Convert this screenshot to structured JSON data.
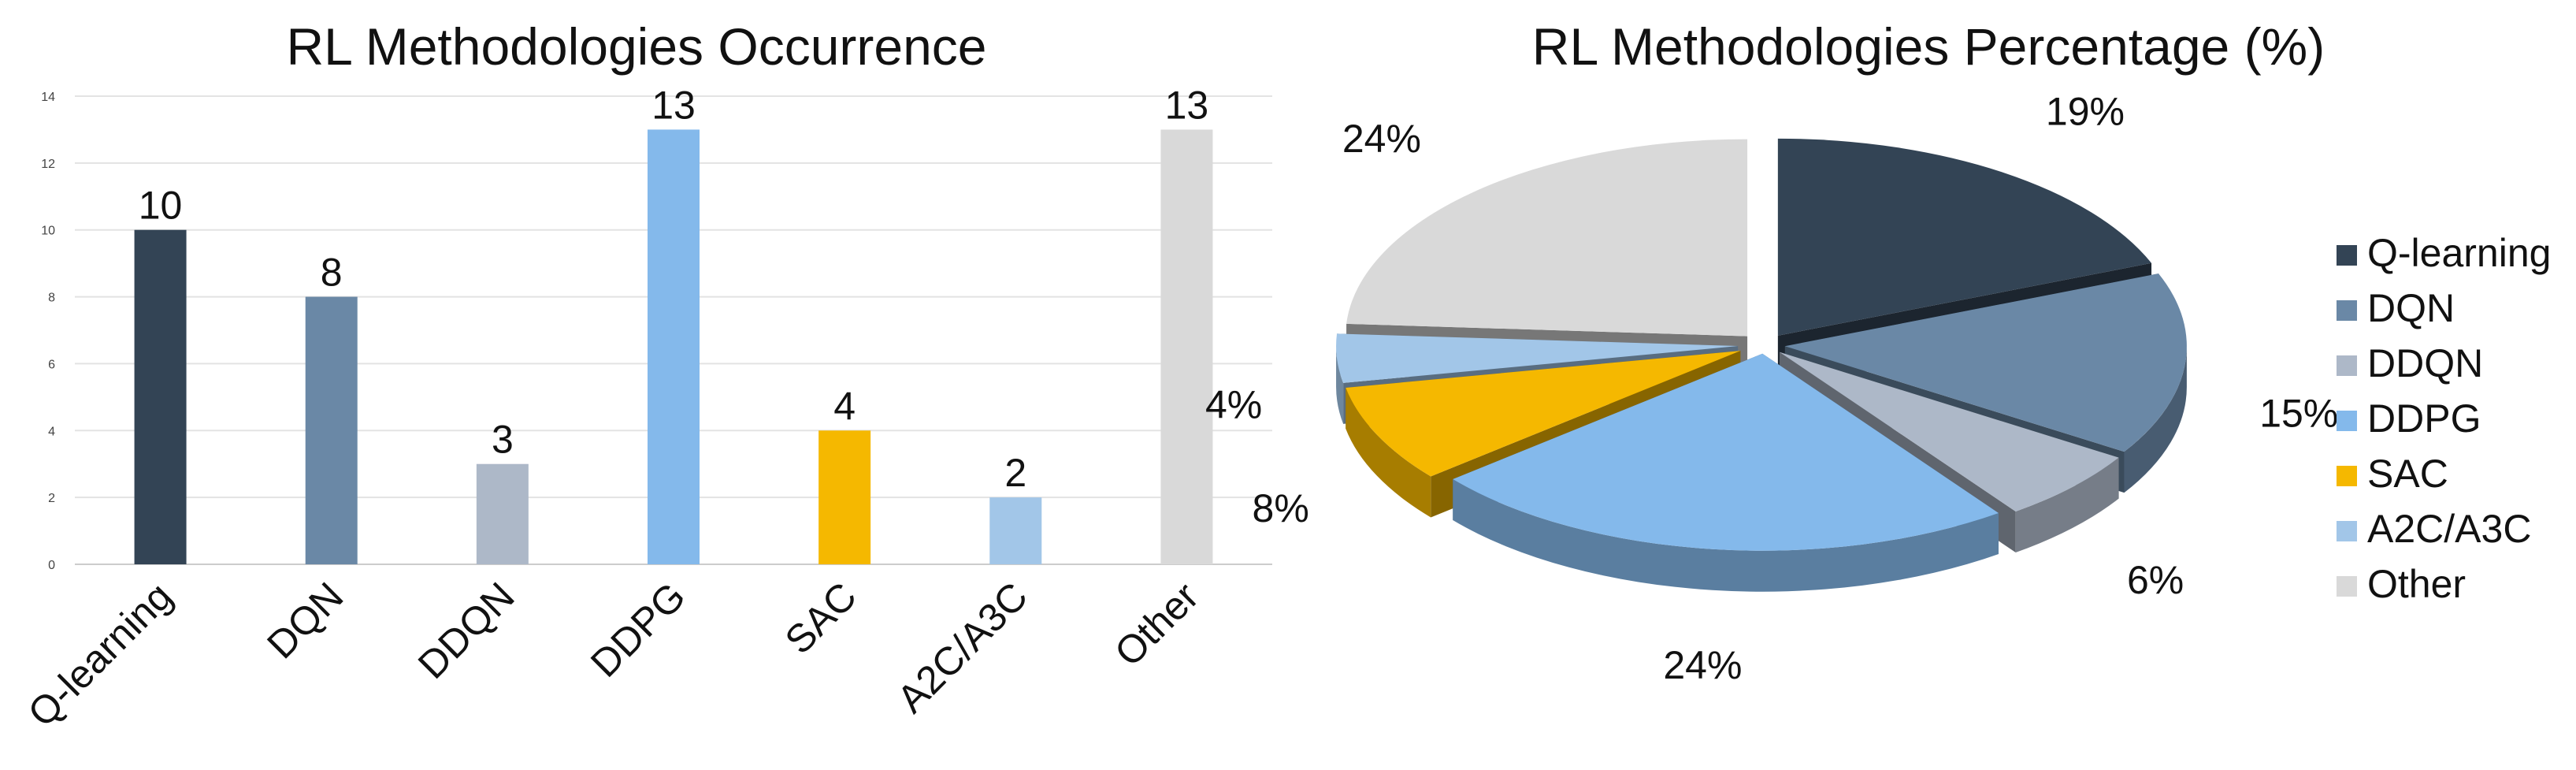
{
  "chart_data": [
    {
      "type": "bar",
      "title": "RL Methodologies Occurrence",
      "categories": [
        "Q-learning",
        "DQN",
        "DDQN",
        "DDPG",
        "SAC",
        "A2C/A3C",
        "Other"
      ],
      "values": [
        10,
        8,
        3,
        13,
        4,
        2,
        13
      ],
      "colors": [
        "#334455",
        "#6a88a6",
        "#adb8c8",
        "#84b9eb",
        "#f5b800",
        "#a2c6e8",
        "#d9d9d9"
      ],
      "ylim": [
        0,
        14
      ],
      "yticks": [
        0,
        2,
        4,
        6,
        8,
        10,
        12,
        14
      ],
      "grid": true,
      "xlabel": "",
      "ylabel": ""
    },
    {
      "type": "pie",
      "title": "RL Methodologies Percentage (%)",
      "categories": [
        "Q-learning",
        "DQN",
        "DDQN",
        "DDPG",
        "SAC",
        "A2C/A3C",
        "Other"
      ],
      "values": [
        19,
        15,
        6,
        24,
        8,
        4,
        24
      ],
      "labels": [
        "19%",
        "15%",
        "6%",
        "24%",
        "8%",
        "4%",
        "24%"
      ],
      "colors": [
        "#334455",
        "#6a88a6",
        "#adb8c8",
        "#84b9eb",
        "#f5b800",
        "#a2c6e8",
        "#d9d9d9"
      ],
      "legend_position": "right",
      "style": "3d-exploded"
    }
  ]
}
